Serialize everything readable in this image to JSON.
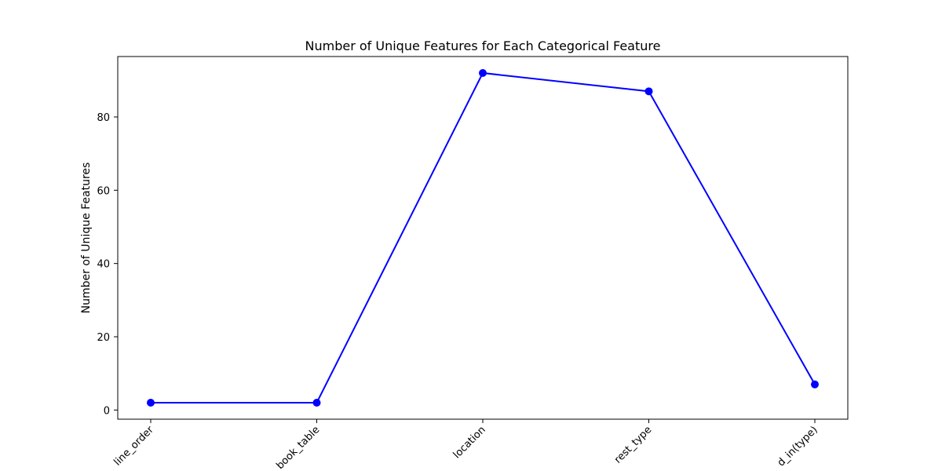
{
  "chart_data": {
    "type": "line",
    "title": "Number of Unique Features for Each Categorical Feature",
    "xlabel": "",
    "ylabel": "Number of Unique Features",
    "categories": [
      "online_order",
      "book_table",
      "location",
      "rest_type",
      "listed_in(type)"
    ],
    "category_labels_visible": [
      "line_order",
      "book_table",
      "location",
      "rest_type",
      "d_in(type)"
    ],
    "values": [
      2,
      2,
      92,
      87,
      7
    ],
    "ylim": [
      -2.5,
      96.5
    ],
    "yticks": [
      0,
      20,
      40,
      60,
      80
    ],
    "grid": false,
    "legend": "none",
    "line_color": "#0000ff",
    "marker": "circle"
  }
}
